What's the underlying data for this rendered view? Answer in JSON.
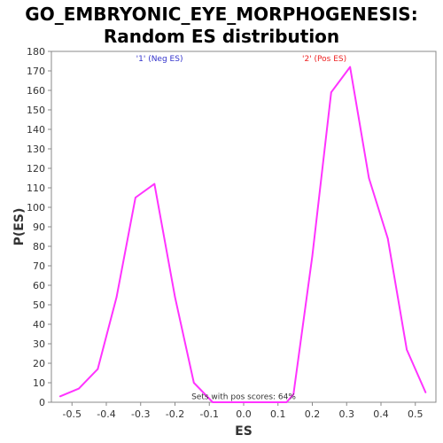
{
  "chart_data": {
    "type": "line",
    "title": [
      "GO_EMBRYONIC_EYE_MORPHOGENESIS:",
      "Random ES distribution"
    ],
    "xlabel": "ES",
    "ylabel": "P(ES)",
    "xlim": [
      -0.56,
      0.56
    ],
    "ylim": [
      0,
      180
    ],
    "xticks": [
      -0.5,
      -0.4,
      -0.3,
      -0.2,
      -0.1,
      0.0,
      0.1,
      0.2,
      0.3,
      0.4,
      0.5
    ],
    "xtick_labels": [
      "-0.5",
      "-0.4",
      "-0.3",
      "-0.2",
      "-0.1",
      "0.0",
      "0.1",
      "0.2",
      "0.3",
      "0.4",
      "0.5"
    ],
    "yticks": [
      0,
      10,
      20,
      30,
      40,
      50,
      60,
      70,
      80,
      90,
      100,
      110,
      120,
      130,
      140,
      150,
      160,
      170,
      180
    ],
    "grid": false,
    "series": [
      {
        "color": "#ff33ff",
        "x": [
          -0.535,
          -0.48,
          -0.425,
          -0.37,
          -0.315,
          -0.26,
          -0.2,
          -0.145,
          -0.09,
          0.125,
          0.145,
          0.2,
          0.255,
          0.31,
          0.365,
          0.42,
          0.475,
          0.53
        ],
        "y": [
          3,
          7,
          17,
          54,
          105,
          112,
          54,
          10,
          0,
          0,
          4,
          75,
          159,
          172,
          115,
          84,
          27,
          5
        ]
      }
    ],
    "annotations": [
      {
        "text": "'1' (Neg ES)",
        "x": -0.245,
        "y": 175,
        "color": "#3333cc"
      },
      {
        "text": "'2' (Pos ES)",
        "x": 0.235,
        "y": 175,
        "color": "#ee2222"
      },
      {
        "text": "Sets with pos scores: 64%",
        "x": 0.0,
        "y": 1.5,
        "color": "#333333"
      }
    ]
  }
}
